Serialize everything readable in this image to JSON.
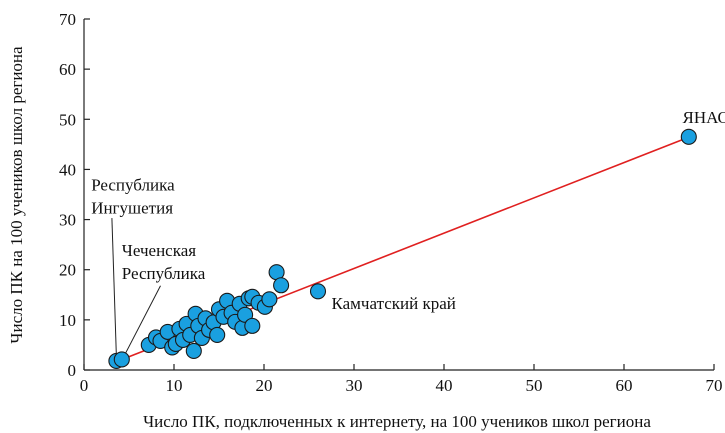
{
  "chart_data": {
    "type": "scatter",
    "title": "",
    "xlabel": "Число ПК, подключенных к интернету, на 100 учеников школ региона",
    "ylabel": "Число ПК на 100 учеников школ региона",
    "xlim": [
      0,
      70
    ],
    "ylim": [
      0,
      70
    ],
    "xticks": [
      "0",
      "10",
      "20",
      "30",
      "40",
      "50",
      "60",
      "70"
    ],
    "yticks": [
      "0",
      "10",
      "20",
      "30",
      "40",
      "50",
      "60",
      "70"
    ],
    "grid": false,
    "point_color": "#1aa0e0",
    "trend_color": "#e02020",
    "trendline": {
      "x": [
        3.8,
        67
      ],
      "y": [
        1.8,
        46.3
      ]
    },
    "points": [
      {
        "x": 3.6,
        "y": 1.8
      },
      {
        "x": 4.2,
        "y": 2.1
      },
      {
        "x": 7.2,
        "y": 5.0
      },
      {
        "x": 8.0,
        "y": 6.5
      },
      {
        "x": 8.5,
        "y": 5.8
      },
      {
        "x": 9.3,
        "y": 7.6
      },
      {
        "x": 9.8,
        "y": 4.5
      },
      {
        "x": 10.2,
        "y": 5.2
      },
      {
        "x": 10.6,
        "y": 8.2
      },
      {
        "x": 11.0,
        "y": 6.0
      },
      {
        "x": 11.4,
        "y": 9.2
      },
      {
        "x": 11.8,
        "y": 7.0
      },
      {
        "x": 12.2,
        "y": 3.8
      },
      {
        "x": 12.4,
        "y": 11.2
      },
      {
        "x": 12.7,
        "y": 8.8
      },
      {
        "x": 13.1,
        "y": 6.4
      },
      {
        "x": 13.5,
        "y": 10.3
      },
      {
        "x": 13.9,
        "y": 8.0
      },
      {
        "x": 14.4,
        "y": 9.5
      },
      {
        "x": 14.8,
        "y": 7.0
      },
      {
        "x": 15.0,
        "y": 12.1
      },
      {
        "x": 15.5,
        "y": 10.6
      },
      {
        "x": 15.9,
        "y": 13.8
      },
      {
        "x": 16.4,
        "y": 11.4
      },
      {
        "x": 16.8,
        "y": 9.6
      },
      {
        "x": 17.3,
        "y": 13.2
      },
      {
        "x": 17.6,
        "y": 8.4
      },
      {
        "x": 17.9,
        "y": 11.0
      },
      {
        "x": 18.3,
        "y": 14.3
      },
      {
        "x": 18.7,
        "y": 8.8
      },
      {
        "x": 18.7,
        "y": 14.6
      },
      {
        "x": 19.4,
        "y": 13.4
      },
      {
        "x": 20.1,
        "y": 12.6
      },
      {
        "x": 20.6,
        "y": 14.1
      },
      {
        "x": 21.4,
        "y": 19.5
      },
      {
        "x": 21.9,
        "y": 16.9
      },
      {
        "x": 26.0,
        "y": 15.7
      },
      {
        "x": 67.2,
        "y": 46.5
      }
    ],
    "annotations": [
      {
        "name": "annotation-yanao",
        "lines": [
          "ЯНАО"
        ],
        "x": 66.5,
        "y": 49.3
      },
      {
        "name": "annotation-ingushetia",
        "lines": [
          "Республика",
          "Ингушетия"
        ],
        "x": 0.8,
        "y": 35.8
      },
      {
        "name": "annotation-chechnya",
        "lines": [
          "Чеченская",
          "Республика"
        ],
        "x": 4.2,
        "y": 22.7
      },
      {
        "name": "annotation-kamchatka",
        "lines": [
          "Камчатский край"
        ],
        "x": 27.5,
        "y": 12.2
      }
    ],
    "leader_lines": [
      {
        "name": "leader-ingushetia",
        "x1": 3.1,
        "y1": 30.3,
        "x2": 3.6,
        "y2": 2.6
      },
      {
        "name": "leader-chechnya",
        "x1": 8.5,
        "y1": 16.8,
        "x2": 4.4,
        "y2": 2.6
      }
    ]
  }
}
